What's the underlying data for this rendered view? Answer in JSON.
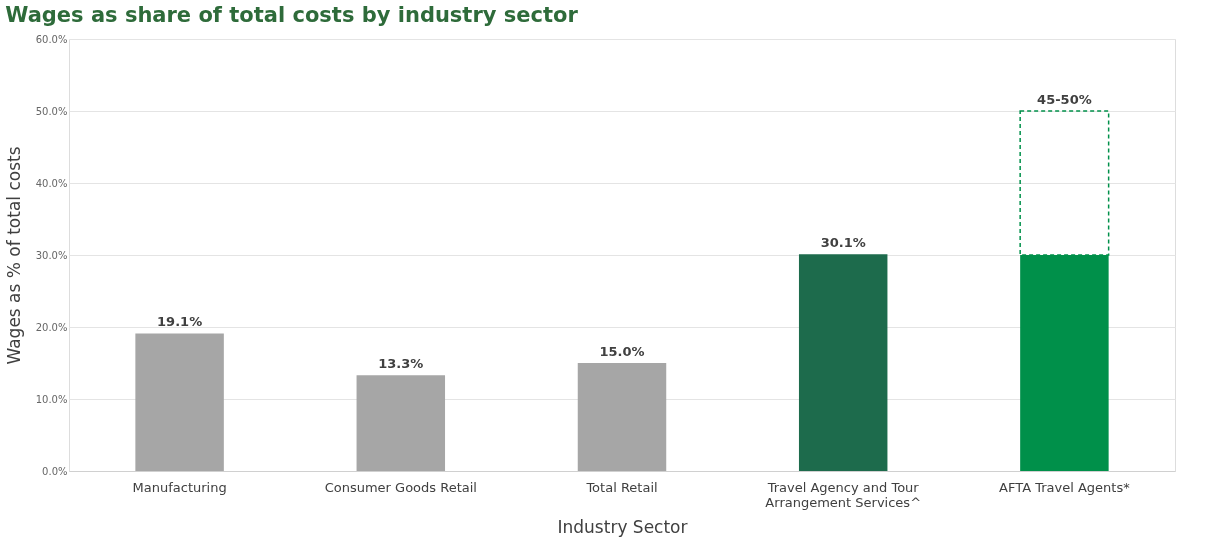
{
  "chart_data": {
    "type": "bar",
    "title": "Wages as share of total costs by industry sector",
    "xlabel": "Industry Sector",
    "ylabel": "Wages as % of total costs",
    "categories": [
      "Manufacturing",
      "Consumer Goods Retail",
      "Total Retail",
      "Travel Agency and Tour Arrangement Services^",
      "AFTA Travel Agents*"
    ],
    "stacked": true,
    "series": [
      {
        "colors": [
          "#a6a6a6",
          "#a6a6a6",
          "#a6a6a6",
          "#1d6b4c",
          "#00904a"
        ],
        "values": [
          19.1,
          13.3,
          15.0,
          30.1,
          30.0
        ],
        "value_labels": [
          "19.1%",
          "13.3%",
          "15.0%",
          "30.1%",
          null
        ]
      },
      {
        "color": "#00904a",
        "line_style": "dashed",
        "values": [
          null,
          null,
          null,
          null,
          20.0
        ]
      }
    ],
    "annotations": [
      {
        "text": "45-50%",
        "x": "AFTA Travel Agents*",
        "y": 50
      }
    ],
    "ylim": [
      0,
      60
    ],
    "yticks": [
      {
        "value": 0,
        "label": "0.0%"
      },
      {
        "value": 10,
        "label": "10.0%"
      },
      {
        "value": 20,
        "label": "20.0%"
      },
      {
        "value": 30,
        "label": "30.0%"
      },
      {
        "value": 40,
        "label": "40.0%"
      },
      {
        "value": 50,
        "label": "50.0%"
      },
      {
        "value": 60,
        "label": "60.0%"
      }
    ],
    "grid": "y"
  }
}
